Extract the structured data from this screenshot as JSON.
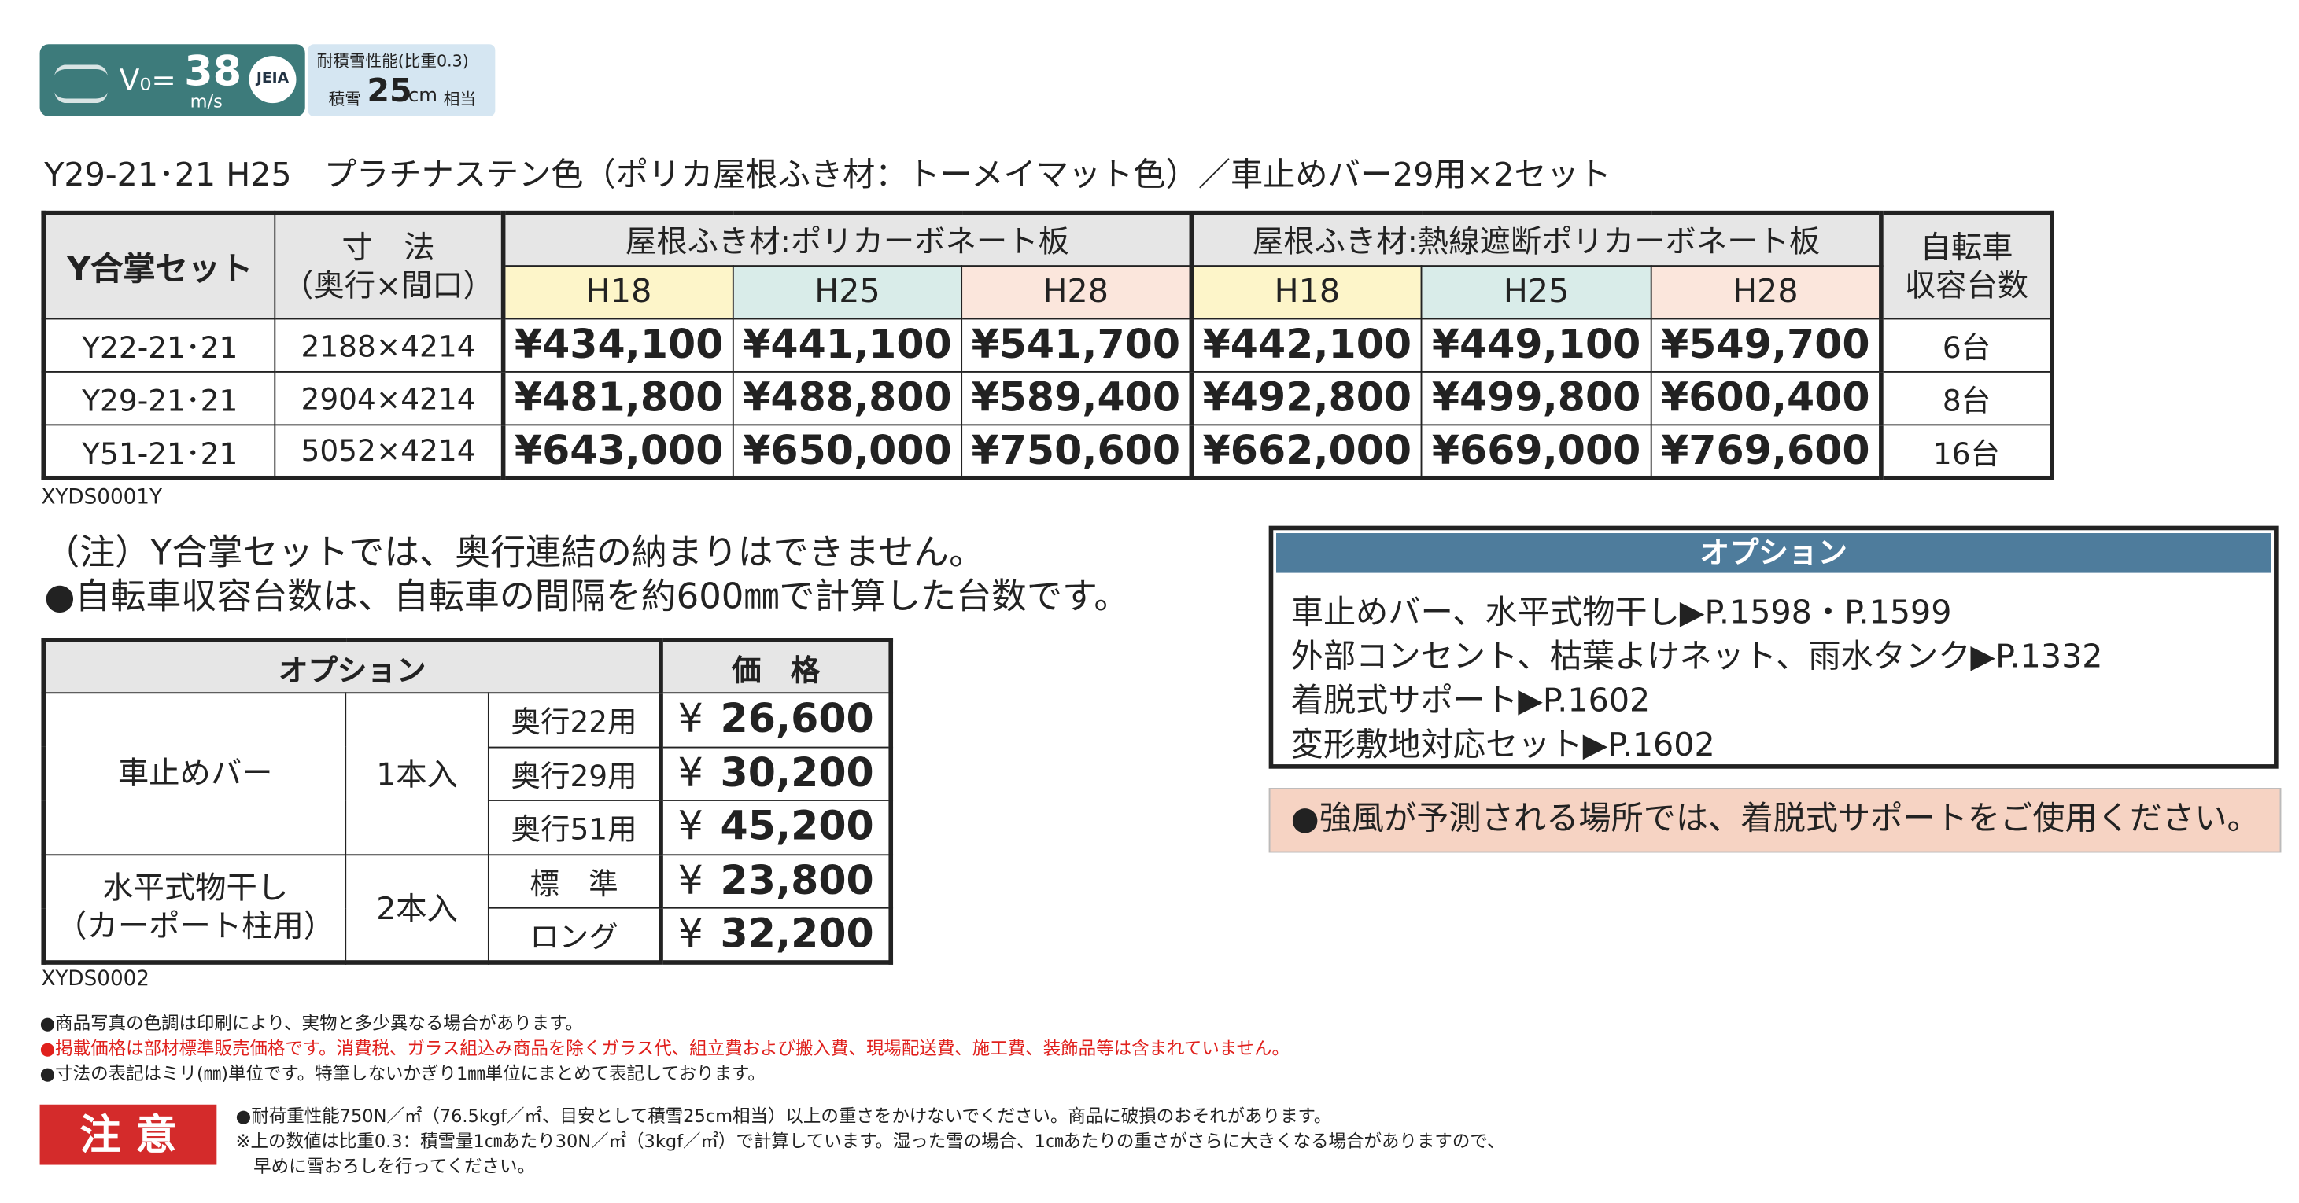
{
  "badge": {
    "wind_prefix": "V₀=",
    "wind_value": "38",
    "wind_unit": "m/s",
    "logo": "JEIA",
    "snow_title": "耐積雪性能(比重0.3)",
    "snow_prefix": "積雪",
    "snow_value": "25",
    "snow_unit": "cm",
    "snow_suffix": "相当"
  },
  "heading": "Y29-21･21 H25　プラチナステン色（ポリカ屋根ふき材：トーメイマット色）／車止めバー29用×2セット",
  "price_table": {
    "set_header": "Y合掌セット",
    "size_header": [
      "寸　法",
      "（奥行×間口）"
    ],
    "capacity_header": [
      "自転車",
      "収容台数"
    ],
    "groups": [
      "屋根ふき材:ポリカーボネート板",
      "屋根ふき材:熱線遮断ポリカーボネート板"
    ],
    "sub_headers": [
      "H18",
      "H25",
      "H28",
      "H18",
      "H25",
      "H28"
    ],
    "rows": [
      {
        "model": "Y22-21･21",
        "size": "2188×4214",
        "prices": [
          "¥434,100",
          "¥441,100",
          "¥541,700",
          "¥442,100",
          "¥449,100",
          "¥549,700"
        ],
        "capacity": "6台"
      },
      {
        "model": "Y29-21･21",
        "size": "2904×4214",
        "prices": [
          "¥481,800",
          "¥488,800",
          "¥589,400",
          "¥492,800",
          "¥499,800",
          "¥600,400"
        ],
        "capacity": "8台"
      },
      {
        "model": "Y51-21･21",
        "size": "5052×4214",
        "prices": [
          "¥643,000",
          "¥650,000",
          "¥750,600",
          "¥662,000",
          "¥669,000",
          "¥769,600"
        ],
        "capacity": "16台"
      }
    ]
  },
  "code1": "XYDS0001Y",
  "notes": [
    "（注）Y合掌セットでは、奥行連結の納まりはできません。",
    "●自転車収容台数は、自転車の間隔を約600㎜で計算した台数です。"
  ],
  "option_table": {
    "headers": [
      "オプション",
      "価　格"
    ],
    "groups": [
      {
        "name": [
          "車止めバー"
        ],
        "qty": "1本入",
        "items": [
          {
            "label": "奥行22用",
            "currency": "¥",
            "price": "26,600"
          },
          {
            "label": "奥行29用",
            "currency": "¥",
            "price": "30,200"
          },
          {
            "label": "奥行51用",
            "currency": "¥",
            "price": "45,200"
          }
        ]
      },
      {
        "name": [
          "水平式物干し",
          "（カーポート柱用）"
        ],
        "qty": "2本入",
        "items": [
          {
            "label": "標　準",
            "currency": "¥",
            "price": "23,800"
          },
          {
            "label": "ロング",
            "currency": "¥",
            "price": "32,200"
          }
        ]
      }
    ]
  },
  "code2": "XYDS0002",
  "options_box": {
    "title": "オプション",
    "lines": [
      "車止めバー、水平式物干し▶P.1598・P.1599",
      "外部コンセント、枯葉よけネット、雨水タンク▶P.1332",
      "着脱式サポート▶P.1602",
      "変形敷地対応セット▶P.1602"
    ]
  },
  "warning": "●強風が予測される場所では、着脱式サポートをご使用ください。",
  "footnotes": [
    "●商品写真の色調は印刷により、実物と多少異なる場合があります。",
    "●掲載価格は部材標準販売価格です。消費税、ガラス組込み商品を除くガラス代、組立費および搬入費、現場配送費、施工費、装飾品等は含まれていません。",
    "●寸法の表記はミリ(㎜)単位です。特筆しないかぎり1㎜単位にまとめて表記しております。"
  ],
  "caution": {
    "label": "注 意",
    "lines": [
      "●耐荷重性能750N／㎡（76.5kgf／㎡、目安として積雪25cm相当）以上の重さをかけないでください。商品に破損のおそれがあります。",
      "※上の数値は比重0.3：積雪量1㎝あたり30N／㎡（3kgf／㎡）で計算しています。湿った雪の場合、1㎝あたりの重さがさらに大きくなる場合がありますので、",
      "　早めに雪おろしを行ってください。"
    ]
  }
}
